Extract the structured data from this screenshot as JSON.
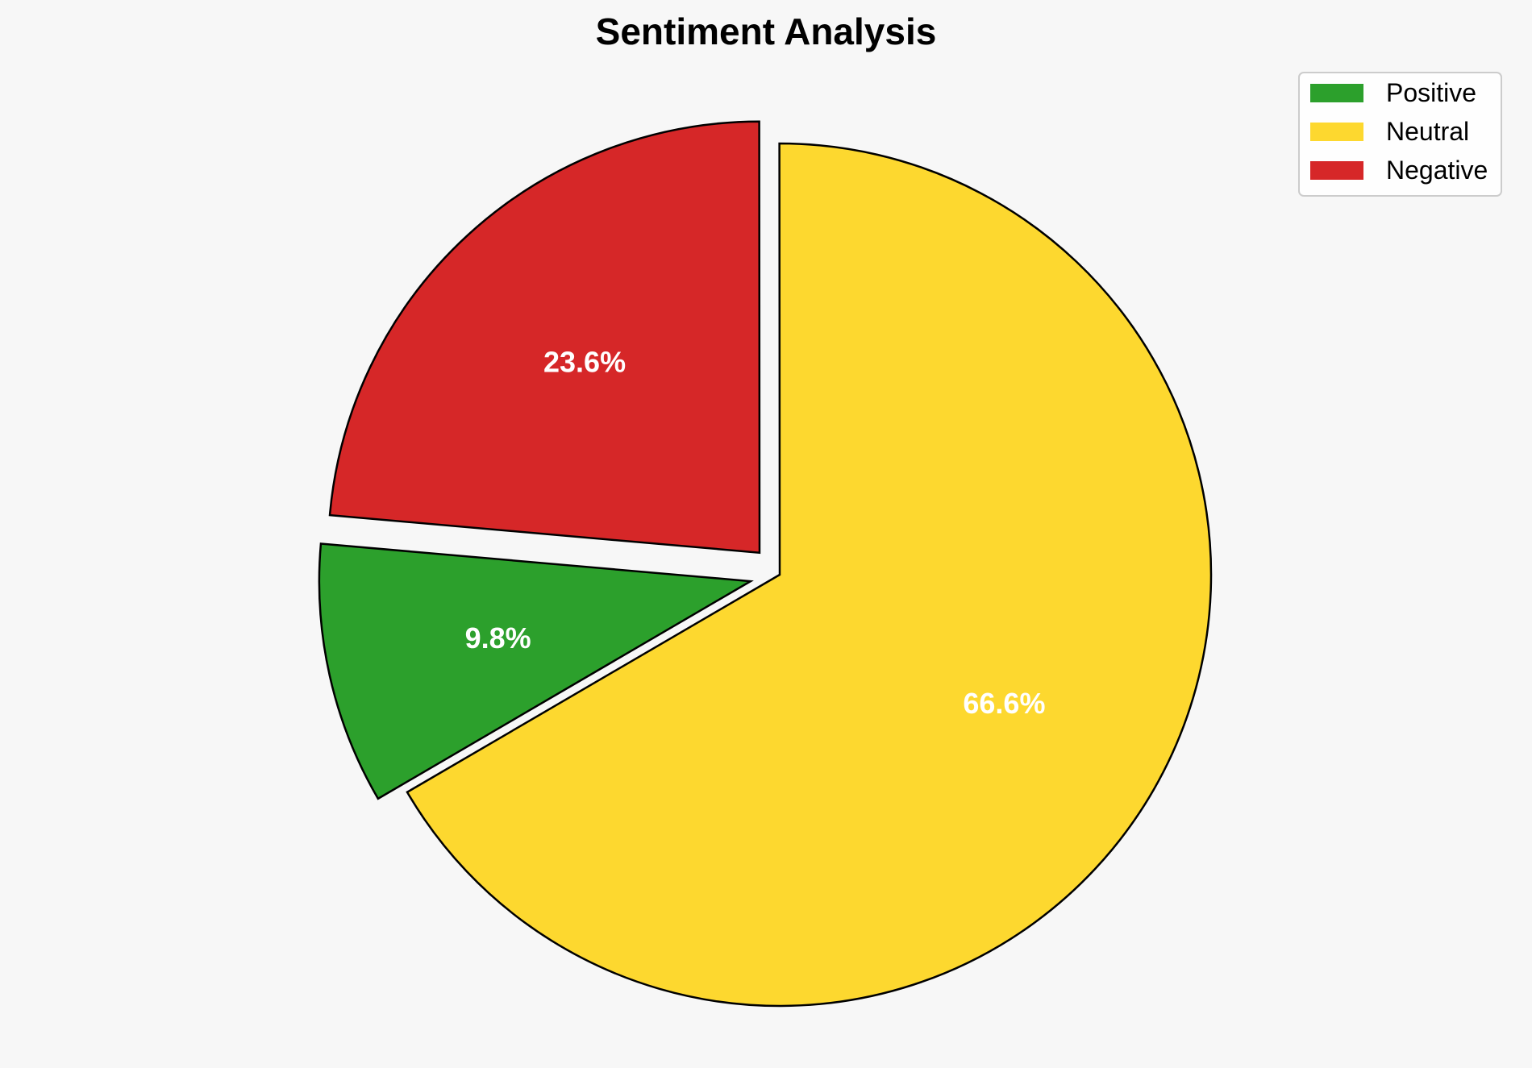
{
  "chart_data": {
    "type": "pie",
    "title": "Sentiment Analysis",
    "categories": [
      "Positive",
      "Neutral",
      "Negative"
    ],
    "values": [
      9.8,
      66.6,
      23.6
    ],
    "labels": [
      "9.8%",
      "66.6%",
      "23.6%"
    ],
    "colors": [
      "#2ca02c",
      "#fdd82f",
      "#d62728"
    ],
    "exploded": [
      true,
      false,
      true
    ],
    "start_angle_deg": 175,
    "direction": "counterclockwise",
    "legend_position": "top-right",
    "edge_color": "#000000"
  }
}
